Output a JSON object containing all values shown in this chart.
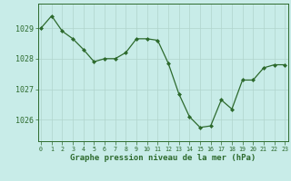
{
  "x": [
    0,
    1,
    2,
    3,
    4,
    5,
    6,
    7,
    8,
    9,
    10,
    11,
    12,
    13,
    14,
    15,
    16,
    17,
    18,
    19,
    20,
    21,
    22,
    23
  ],
  "y": [
    1029.0,
    1029.4,
    1028.9,
    1028.65,
    1028.3,
    1027.9,
    1028.0,
    1028.0,
    1028.2,
    1028.65,
    1028.65,
    1028.6,
    1027.85,
    1026.85,
    1026.1,
    1025.75,
    1025.8,
    1026.65,
    1026.35,
    1027.3,
    1027.3,
    1027.7,
    1027.8,
    1027.8
  ],
  "line_color": "#2d6a2d",
  "marker_color": "#2d6a2d",
  "bg_color": "#c8ece8",
  "grid_color": "#b0d4cc",
  "xlabel": "Graphe pression niveau de la mer (hPa)",
  "xlabel_color": "#2d6a2d",
  "tick_color": "#2d6a2d",
  "ylim": [
    1025.3,
    1029.8
  ],
  "yticks": [
    1026,
    1027,
    1028,
    1029
  ],
  "xticks": [
    0,
    1,
    2,
    3,
    4,
    5,
    6,
    7,
    8,
    9,
    10,
    11,
    12,
    13,
    14,
    15,
    16,
    17,
    18,
    19,
    20,
    21,
    22,
    23
  ],
  "xlim": [
    -0.3,
    23.3
  ],
  "spine_color": "#2d6a2d",
  "ylabel_fontsize": 6.0,
  "xlabel_fontsize": 6.5,
  "xtick_fontsize": 4.8
}
